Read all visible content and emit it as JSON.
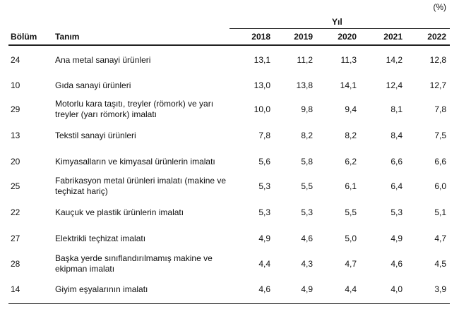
{
  "table": {
    "note": "(%)",
    "group_header": "Yıl",
    "columns": [
      "Bölüm",
      "Tanım",
      "2018",
      "2019",
      "2020",
      "2021",
      "2022"
    ],
    "rows": [
      [
        "24",
        "Ana metal sanayi ürünleri",
        "13,1",
        "11,2",
        "11,3",
        "14,2",
        "12,8"
      ],
      [
        "10",
        "Gıda sanayi ürünleri",
        "13,0",
        "13,8",
        "14,1",
        "12,4",
        "12,7"
      ],
      [
        "29",
        "Motorlu kara taşıtı, treyler (römork) ve yarı treyler (yarı römork) imalatı",
        "10,0",
        "9,8",
        "9,4",
        "8,1",
        "7,8"
      ],
      [
        "13",
        "Tekstil sanayi ürünleri",
        "7,8",
        "8,2",
        "8,2",
        "8,4",
        "7,5"
      ],
      [
        "20",
        "Kimyasalların ve kimyasal ürünlerin imalatı",
        "5,6",
        "5,8",
        "6,2",
        "6,6",
        "6,6"
      ],
      [
        "25",
        "Fabrikasyon metal ürünleri imalatı (makine ve teçhizat hariç)",
        "5,3",
        "5,5",
        "6,1",
        "6,4",
        "6,0"
      ],
      [
        "22",
        "Kauçuk ve plastik ürünlerin imalatı",
        "5,3",
        "5,3",
        "5,5",
        "5,3",
        "5,1"
      ],
      [
        "27",
        "Elektrikli teçhizat imalatı",
        "4,9",
        "4,6",
        "5,0",
        "4,9",
        "4,7"
      ],
      [
        "28",
        "Başka yerde sınıflandırılmamış makine ve ekipman imalatı",
        "4,4",
        "4,3",
        "4,7",
        "4,6",
        "4,5"
      ],
      [
        "14",
        "Giyim eşyalarının imalatı",
        "4,6",
        "4,9",
        "4,4",
        "4,0",
        "3,9"
      ]
    ]
  }
}
